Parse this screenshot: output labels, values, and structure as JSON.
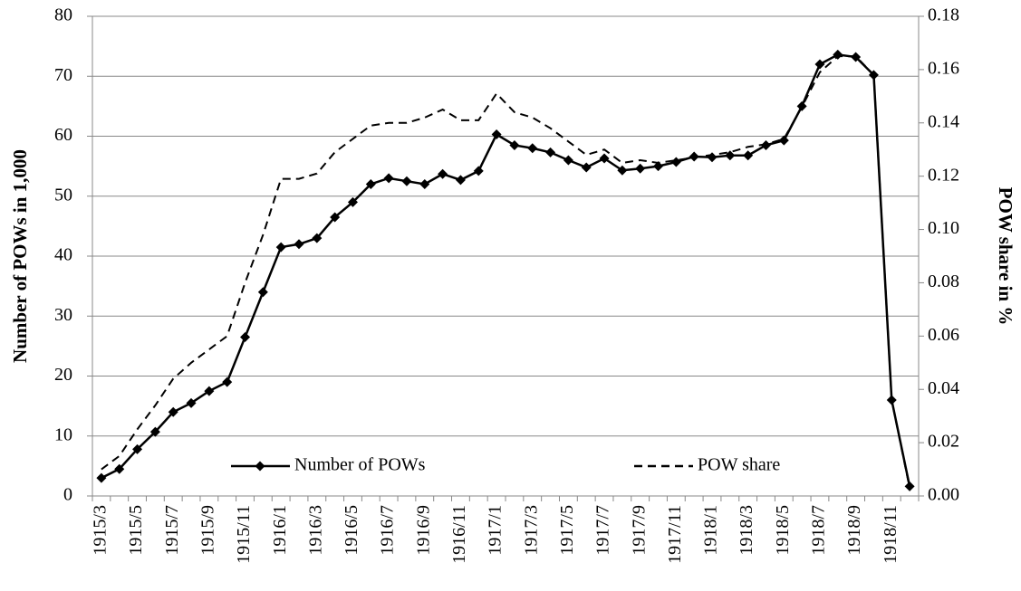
{
  "chart_data": {
    "type": "line",
    "ylabel": "Number of POWs in 1,000",
    "y2label": "POW share in %",
    "categories": [
      "1915/3",
      null,
      "1915/5",
      null,
      "1915/7",
      null,
      "1915/9",
      null,
      "1915/11",
      null,
      "1916/1",
      null,
      "1916/3",
      null,
      "1916/5",
      null,
      "1916/7",
      null,
      "1916/9",
      null,
      "1916/11",
      null,
      "1917/1",
      null,
      "1917/3",
      null,
      "1917/5",
      null,
      "1917/7",
      null,
      "1917/9",
      null,
      "1917/11",
      null,
      "1918/1",
      null,
      "1918/3",
      null,
      "1918/5",
      null,
      "1918/7",
      null,
      "1918/9",
      null,
      "1918/11",
      null
    ],
    "series": [
      {
        "name": "Number of POWs",
        "color": "#000000",
        "axis": "y",
        "style": "solid",
        "marker": "diamond",
        "values": [
          3.0,
          4.5,
          7.8,
          10.7,
          14.0,
          15.5,
          17.5,
          19.0,
          26.5,
          34.0,
          41.5,
          42.0,
          43.0,
          46.5,
          49.0,
          52.0,
          53.0,
          52.5,
          52.0,
          53.7,
          52.7,
          54.2,
          60.3,
          58.5,
          58.0,
          57.3,
          56.0,
          54.8,
          56.3,
          54.3,
          54.6,
          55.0,
          55.7,
          56.6,
          56.5,
          56.8,
          56.8,
          58.5,
          59.3,
          65.0,
          72.0,
          73.6,
          73.2,
          70.2,
          16.0,
          1.6
        ]
      },
      {
        "name": "POW share",
        "color": "#000000",
        "axis": "y2",
        "style": "dashed",
        "values": [
          0.01,
          0.015,
          0.025,
          0.034,
          0.044,
          0.05,
          0.055,
          0.06,
          0.08,
          0.098,
          0.119,
          0.119,
          0.121,
          0.129,
          0.134,
          0.139,
          0.14,
          0.14,
          0.142,
          0.145,
          0.141,
          0.141,
          0.151,
          0.144,
          0.142,
          0.138,
          0.133,
          0.128,
          0.13,
          0.125,
          0.126,
          0.125,
          0.126,
          0.127,
          0.128,
          0.129,
          0.131,
          0.132,
          0.134,
          0.146,
          0.159,
          0.165,
          0.165,
          0.158,
          0.036,
          0.003
        ]
      }
    ],
    "ylim": [
      0,
      80
    ],
    "yticks": [
      0,
      10,
      20,
      30,
      40,
      50,
      60,
      70,
      80
    ],
    "y2lim": [
      0,
      0.18
    ],
    "y2ticks": [
      {
        "value": 0,
        "label": "0.00"
      },
      {
        "value": 0.02,
        "label": "0.02"
      },
      {
        "value": 0.04,
        "label": "0.04"
      },
      {
        "value": 0.06,
        "label": "0.06"
      },
      {
        "value": 0.08,
        "label": "0.08"
      },
      {
        "value": 0.1,
        "label": "0.10"
      },
      {
        "value": 0.12,
        "label": "0.12"
      },
      {
        "value": 0.14,
        "label": "0.14"
      },
      {
        "value": 0.16,
        "label": "0.16"
      },
      {
        "value": 0.18,
        "label": "0.18"
      }
    ],
    "grid": true,
    "legend": "lower center"
  }
}
